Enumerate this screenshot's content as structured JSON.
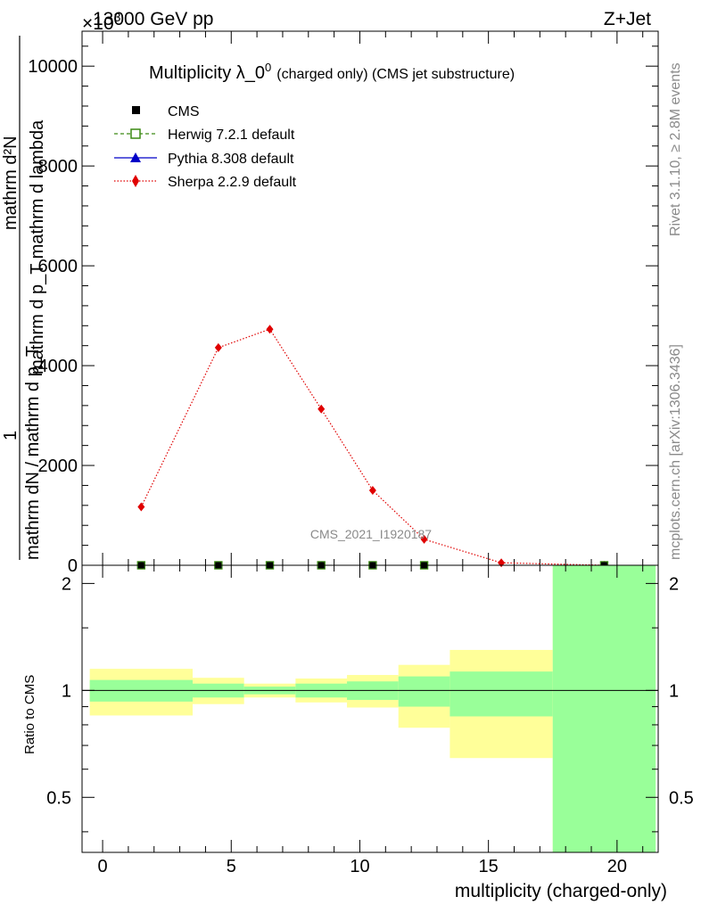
{
  "header": {
    "energy_label": "13000 GeV pp",
    "process_label": "Z+Jet",
    "exponent_label": "×10",
    "exponent_power": "3"
  },
  "side_labels": {
    "rivet": "Rivet 3.1.10, ≥ 2.8M events",
    "mcplots": "mcplots.cern.ch [arXiv:1306.3436]"
  },
  "watermark": "CMS_2021_I1920187",
  "main_y_label": {
    "line1": "mathrm d²N",
    "line2": "mathrm d p_T mathrm d lambda",
    "frac_num": "1",
    "frac_den": "mathrm dN / mathrm d p_T"
  },
  "colors": {
    "herwig": "#3c8a14",
    "pythia": "#0000c8",
    "sherpa": "#e00000",
    "cms": "#000000",
    "band_inner": "#99ff99",
    "band_outer": "#ffff99"
  },
  "chart_data": [
    {
      "type": "line",
      "title": "Multiplicity λ_0⁰ (charged only) (CMS jet substructure)",
      "title_main": "Multiplicity λ_0",
      "title_sup": "0",
      "title_rest": "(charged only) (CMS jet substructure)",
      "xlabel": "multiplicity (charged-only)",
      "ylabel": "1/(dN/dp_T) d²N/(dp_T dλ)",
      "xlim": [
        -0.8,
        21.6
      ],
      "ylim": [
        0,
        10.7
      ],
      "y_scale_label": "×10³",
      "yticks": [
        0,
        2,
        4,
        6,
        8,
        10
      ],
      "ytick_labels": [
        "0",
        "2000",
        "4000",
        "6000",
        "8000",
        "10000"
      ],
      "legend_placement": "top-left",
      "legend": [
        {
          "name": "CMS",
          "marker": "square-filled",
          "color": "#000000"
        },
        {
          "name": "Herwig 7.2.1 default",
          "marker": "square-open",
          "color": "#3c8a14",
          "linestyle": "dashed"
        },
        {
          "name": "Pythia 8.308 default",
          "marker": "triangle",
          "color": "#0000c8",
          "linestyle": "solid"
        },
        {
          "name": "Sherpa 2.2.9 default",
          "marker": "diamond",
          "color": "#e00000",
          "linestyle": "dotted"
        }
      ],
      "series": [
        {
          "name": "CMS",
          "x": [
            1.5,
            4.5,
            6.5,
            8.5,
            10.5,
            12.5,
            19.5
          ],
          "y": [
            0,
            0,
            0,
            0,
            0,
            0,
            0
          ]
        },
        {
          "name": "Herwig 7.2.1 default",
          "x": [
            1.5,
            4.5,
            6.5,
            8.5,
            10.5,
            12.5,
            19.5
          ],
          "y": [
            0,
            0,
            0,
            0,
            0,
            0,
            0
          ]
        },
        {
          "name": "Pythia 8.308 default",
          "x": [
            1.5,
            4.5,
            6.5,
            8.5,
            10.5,
            12.5,
            19.5
          ],
          "y": [
            0,
            0,
            0,
            0,
            0,
            0,
            0
          ]
        },
        {
          "name": "Sherpa 2.2.9 default",
          "x": [
            1.5,
            4.5,
            6.5,
            8.5,
            10.5,
            12.5,
            15.5,
            19.5
          ],
          "y": [
            1.17,
            4.36,
            4.73,
            3.13,
            1.5,
            0.52,
            0.05,
            0.0
          ]
        }
      ]
    },
    {
      "type": "area",
      "xlabel": "multiplicity (charged-only)",
      "ylabel": "Ratio to CMS",
      "xlim": [
        -0.8,
        21.6
      ],
      "ylim": [
        0.35,
        2.25
      ],
      "xticks": [
        0,
        5,
        10,
        15,
        20
      ],
      "yticks": [
        0.5,
        1,
        2
      ],
      "ytick_labels": [
        "0.5",
        "1",
        "2"
      ],
      "reference_line": 1,
      "bands": [
        {
          "xlo": -0.5,
          "xhi": 3.5,
          "inner": [
            0.93,
            1.07
          ],
          "outer": [
            0.85,
            1.15
          ]
        },
        {
          "xlo": 3.5,
          "xhi": 5.5,
          "inner": [
            0.955,
            1.045
          ],
          "outer": [
            0.915,
            1.085
          ]
        },
        {
          "xlo": 5.5,
          "xhi": 7.5,
          "inner": [
            0.975,
            1.025
          ],
          "outer": [
            0.955,
            1.045
          ]
        },
        {
          "xlo": 7.5,
          "xhi": 9.5,
          "inner": [
            0.955,
            1.045
          ],
          "outer": [
            0.925,
            1.08
          ]
        },
        {
          "xlo": 9.5,
          "xhi": 11.5,
          "inner": [
            0.94,
            1.06
          ],
          "outer": [
            0.895,
            1.105
          ]
        },
        {
          "xlo": 11.5,
          "xhi": 13.5,
          "inner": [
            0.9,
            1.095
          ],
          "outer": [
            0.785,
            1.18
          ]
        },
        {
          "xlo": 13.5,
          "xhi": 17.5,
          "inner": [
            0.845,
            1.13
          ],
          "outer": [
            0.645,
            1.3
          ]
        },
        {
          "xlo": 17.5,
          "xhi": 21.5,
          "inner": [
            0.35,
            2.25
          ],
          "outer": [
            0.35,
            2.25
          ]
        }
      ]
    }
  ]
}
